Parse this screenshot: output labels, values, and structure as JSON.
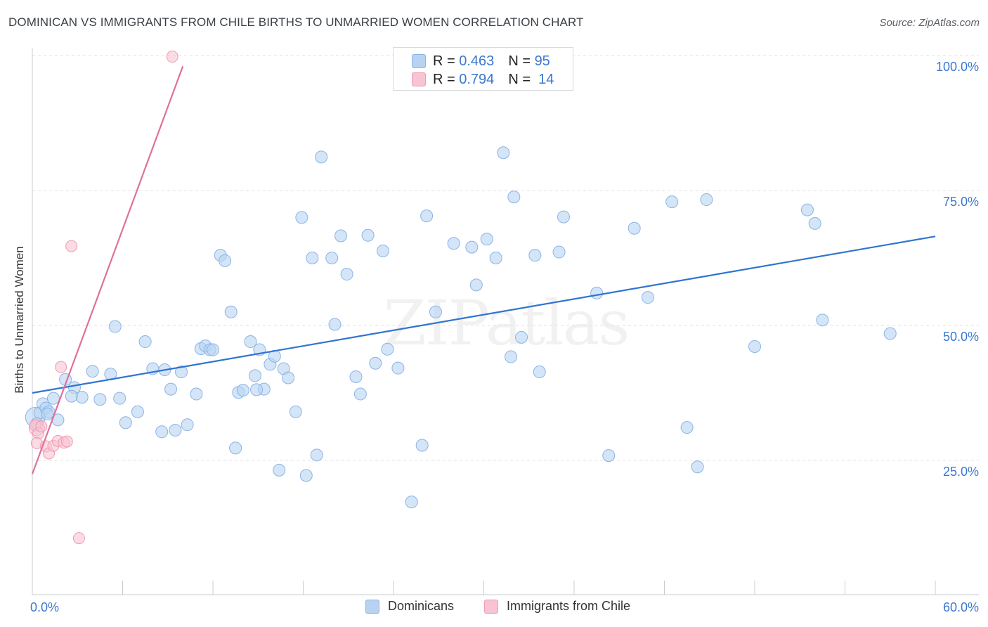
{
  "title": "DOMINICAN VS IMMIGRANTS FROM CHILE BIRTHS TO UNMARRIED WOMEN CORRELATION CHART",
  "source": "Source: ZipAtlas.com",
  "watermark": "ZIPatlas",
  "colors": {
    "blue_fill": "#b8d3f2",
    "blue_stroke": "#8ab4e6",
    "blue_line": "#2f74d0",
    "pink_fill": "#f8c3d2",
    "pink_stroke": "#f09ab3",
    "pink_line": "#e0709a",
    "axis_text": "#3a78d0"
  },
  "legend": {
    "rows": [
      {
        "r_label": "R =",
        "r_value": "0.463",
        "n_label": "N =",
        "n_value": "95"
      },
      {
        "r_label": "R =",
        "r_value": "0.794",
        "n_label": "N =",
        "n_value": "14"
      }
    ]
  },
  "series_labels": {
    "dominicans": "Dominicans",
    "chile": "Immigrants from Chile"
  },
  "chart_data": {
    "type": "scatter",
    "title": "DOMINICAN VS IMMIGRANTS FROM CHILE BIRTHS TO UNMARRIED WOMEN CORRELATION CHART",
    "xlabel": "",
    "ylabel": "Births to Unmarried Women",
    "xlim": [
      0,
      60
    ],
    "ylim": [
      0,
      105
    ],
    "x_tick_labels": [
      "0.0%",
      "60.0%"
    ],
    "y_tick_labels": [
      "25.0%",
      "50.0%",
      "75.0%",
      "100.0%"
    ],
    "y_ticks": [
      25,
      50,
      75,
      100
    ],
    "series": [
      {
        "name": "Dominicans",
        "R": 0.463,
        "N": 95,
        "trend": [
          [
            0,
            37.5
          ],
          [
            60,
            66.5
          ]
        ],
        "points": [
          [
            0.5,
            33.8
          ],
          [
            0.7,
            35.5
          ],
          [
            0.9,
            34.7
          ],
          [
            1.1,
            34.0
          ],
          [
            1.4,
            36.5
          ],
          [
            1.7,
            32.5
          ],
          [
            2.2,
            40.0
          ],
          [
            2.8,
            38.5
          ],
          [
            3.3,
            36.7
          ],
          [
            4.0,
            41.5
          ],
          [
            4.5,
            36.3
          ],
          [
            5.5,
            49.8
          ],
          [
            5.2,
            41.0
          ],
          [
            5.8,
            36.5
          ],
          [
            6.2,
            32.0
          ],
          [
            7.0,
            34.0
          ],
          [
            7.5,
            47.0
          ],
          [
            8.0,
            42.0
          ],
          [
            8.6,
            30.3
          ],
          [
            8.8,
            41.8
          ],
          [
            9.2,
            38.2
          ],
          [
            9.9,
            41.4
          ],
          [
            10.3,
            31.6
          ],
          [
            10.9,
            37.3
          ],
          [
            11.2,
            45.7
          ],
          [
            11.5,
            46.2
          ],
          [
            11.8,
            45.5
          ],
          [
            12.0,
            45.5
          ],
          [
            12.5,
            63.0
          ],
          [
            12.8,
            62.0
          ],
          [
            13.2,
            52.5
          ],
          [
            13.5,
            27.3
          ],
          [
            13.7,
            37.6
          ],
          [
            14.0,
            38.0
          ],
          [
            14.5,
            47.0
          ],
          [
            14.8,
            40.7
          ],
          [
            15.1,
            45.5
          ],
          [
            15.4,
            38.2
          ],
          [
            15.8,
            42.8
          ],
          [
            16.1,
            44.3
          ],
          [
            16.4,
            23.2
          ],
          [
            16.7,
            42.0
          ],
          [
            17.0,
            40.3
          ],
          [
            17.5,
            34.0
          ],
          [
            17.9,
            70.0
          ],
          [
            18.2,
            22.2
          ],
          [
            18.6,
            62.5
          ],
          [
            18.9,
            26.0
          ],
          [
            19.2,
            81.2
          ],
          [
            19.9,
            62.5
          ],
          [
            20.1,
            50.2
          ],
          [
            20.5,
            66.6
          ],
          [
            20.9,
            59.5
          ],
          [
            21.5,
            40.5
          ],
          [
            21.8,
            37.3
          ],
          [
            22.3,
            66.7
          ],
          [
            22.8,
            43.0
          ],
          [
            23.3,
            63.8
          ],
          [
            23.6,
            45.6
          ],
          [
            24.3,
            42.1
          ],
          [
            25.2,
            17.3
          ],
          [
            25.9,
            27.8
          ],
          [
            26.2,
            70.3
          ],
          [
            26.8,
            52.5
          ],
          [
            28.0,
            65.2
          ],
          [
            29.2,
            64.5
          ],
          [
            29.5,
            57.5
          ],
          [
            30.2,
            66.0
          ],
          [
            30.8,
            62.5
          ],
          [
            31.3,
            82.0
          ],
          [
            31.8,
            44.2
          ],
          [
            32.0,
            73.8
          ],
          [
            32.5,
            47.8
          ],
          [
            33.4,
            63.0
          ],
          [
            33.7,
            41.4
          ],
          [
            35.0,
            63.6
          ],
          [
            35.3,
            70.1
          ],
          [
            37.5,
            56.0
          ],
          [
            38.3,
            25.9
          ],
          [
            40.0,
            68.0
          ],
          [
            40.9,
            55.2
          ],
          [
            42.5,
            72.9
          ],
          [
            43.5,
            31.1
          ],
          [
            44.2,
            23.8
          ],
          [
            44.8,
            73.3
          ],
          [
            48.0,
            46.1
          ],
          [
            51.5,
            71.4
          ],
          [
            52.0,
            68.9
          ],
          [
            52.5,
            51.0
          ],
          [
            57.0,
            48.5
          ],
          [
            0.3,
            31.8
          ],
          [
            1.0,
            33.6
          ],
          [
            2.6,
            36.9
          ],
          [
            9.5,
            30.6
          ],
          [
            14.9,
            38.1
          ]
        ]
      },
      {
        "name": "Immigrants from Chile",
        "R": 0.794,
        "N": 14,
        "trend": [
          [
            0,
            22.5
          ],
          [
            10,
            98
          ]
        ],
        "points": [
          [
            0.2,
            31.5
          ],
          [
            0.4,
            30.0
          ],
          [
            0.3,
            28.2
          ],
          [
            0.6,
            31.3
          ],
          [
            0.9,
            27.6
          ],
          [
            1.1,
            26.3
          ],
          [
            1.4,
            27.7
          ],
          [
            1.7,
            28.6
          ],
          [
            1.9,
            42.3
          ],
          [
            2.1,
            28.3
          ],
          [
            2.3,
            28.5
          ],
          [
            2.6,
            64.7
          ],
          [
            3.1,
            10.6
          ],
          [
            9.3,
            99.8
          ]
        ]
      }
    ]
  }
}
